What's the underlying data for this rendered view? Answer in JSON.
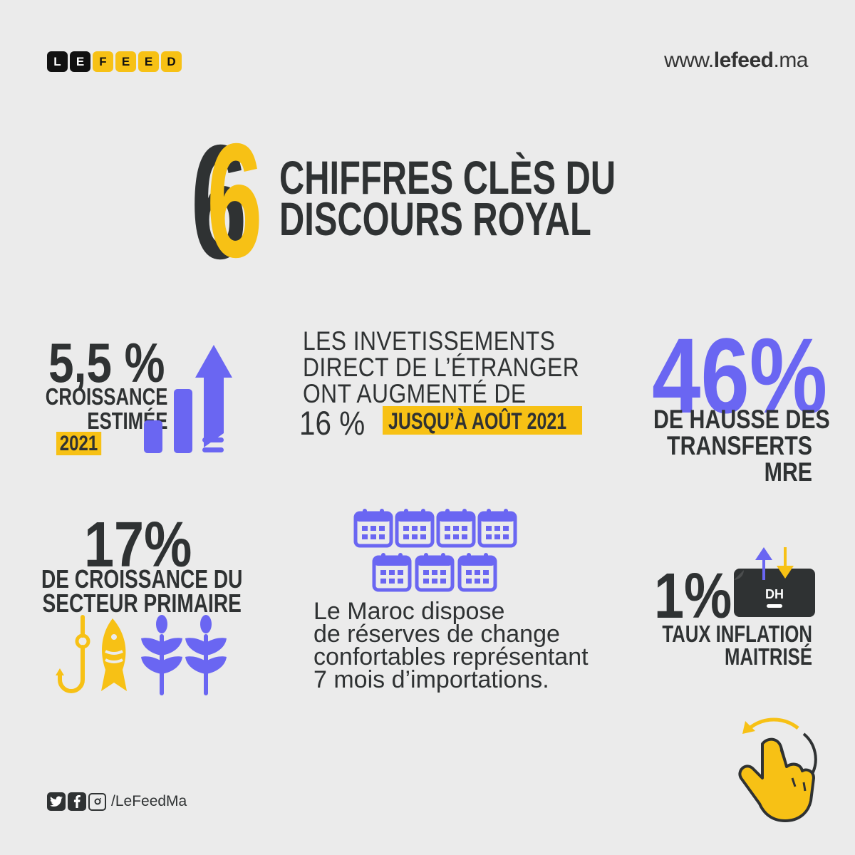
{
  "brand": {
    "logo_letters": [
      "L",
      "E",
      "F",
      "E",
      "E",
      "D"
    ],
    "website_prefix": "www.",
    "website_bold": "lefeed",
    "website_suffix": ".ma"
  },
  "title": {
    "number": "6",
    "line1": "CHIFFRES CLÈS DU",
    "line2": "DISCOURS ROYAL"
  },
  "stats": {
    "growth": {
      "value": "5,5 %",
      "label_line1": "CROISSANCE",
      "label_line2": "ESTIMÉE",
      "year": "2021"
    },
    "fdi": {
      "line1": "LES INVETISSEMENTS",
      "line2": "DIRECT DE L’ÉTRANGER",
      "line3": "ONT AUGMENTÉ DE",
      "value": "16 %",
      "period": "JUSQU’À AOÛT 2021"
    },
    "transfers": {
      "value": "46%",
      "line1": "DE HAUSSE DES",
      "line2": "TRANSFERTS",
      "line3": "MRE"
    },
    "primary": {
      "value": "17%",
      "line1": "DE CROISSANCE DU",
      "line2": "SECTEUR PRIMAIRE"
    },
    "reserves": {
      "line1": "Le Maroc dispose",
      "line2": "de réserves de change",
      "line3": "confortables représentant",
      "line4": "7 mois d’importations."
    },
    "inflation": {
      "value": "1%",
      "line1": "TAUX INFLATION",
      "line2": "MAITRISÉ",
      "currency": "DH"
    }
  },
  "social": {
    "handle": "/LeFeedMa",
    "icons": [
      "twitter-icon",
      "facebook-icon",
      "instagram-icon"
    ]
  },
  "colors": {
    "background": "#ebebeb",
    "yellow": "#f7c115",
    "purple": "#6a66f2",
    "dark": "#2f3233"
  }
}
